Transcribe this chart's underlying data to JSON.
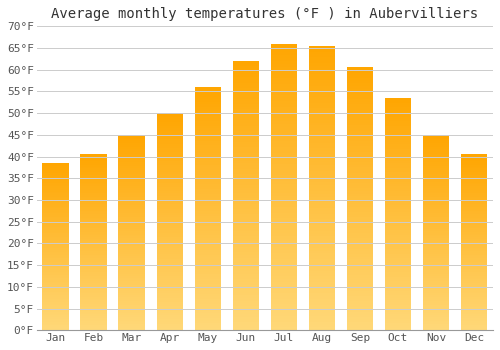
{
  "title": "Average monthly temperatures (°F ) in Aubervilliers",
  "months": [
    "Jan",
    "Feb",
    "Mar",
    "Apr",
    "May",
    "Jun",
    "Jul",
    "Aug",
    "Sep",
    "Oct",
    "Nov",
    "Dec"
  ],
  "values": [
    38.5,
    40.5,
    45.0,
    50.0,
    56.0,
    62.0,
    66.0,
    65.5,
    60.5,
    53.5,
    45.0,
    40.5
  ],
  "bar_color_top": "#FFA500",
  "bar_color_bottom": "#FFD878",
  "ylim": [
    0,
    70
  ],
  "yticks": [
    0,
    5,
    10,
    15,
    20,
    25,
    30,
    35,
    40,
    45,
    50,
    55,
    60,
    65,
    70
  ],
  "background_color": "#FFFFFF",
  "grid_color": "#CCCCCC",
  "title_fontsize": 10,
  "tick_fontsize": 8
}
